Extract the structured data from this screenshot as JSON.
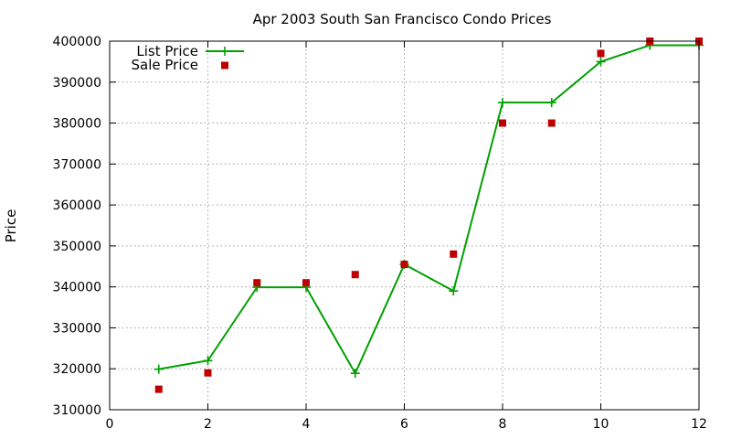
{
  "chart_data": {
    "type": "line",
    "title": "Apr 2003 South San Francisco Condo Prices",
    "xlabel": "",
    "ylabel": "Price",
    "xlim": [
      0,
      12
    ],
    "ylim": [
      310000,
      400000
    ],
    "xticks": [
      "0",
      "2",
      "4",
      "6",
      "8",
      "10",
      "12"
    ],
    "yticks": [
      "310000",
      "320000",
      "330000",
      "340000",
      "350000",
      "360000",
      "370000",
      "380000",
      "390000",
      "400000"
    ],
    "grid": true,
    "legend_position": "top-left",
    "series": [
      {
        "name": "List Price",
        "style": "line-with-plus-markers",
        "color": "#00a000",
        "x": [
          1,
          2,
          3,
          4,
          5,
          6,
          7,
          8,
          9,
          10,
          11,
          12
        ],
        "y": [
          319900,
          322000,
          339900,
          339900,
          318900,
          345500,
          339000,
          385000,
          385000,
          395000,
          399000,
          399000
        ]
      },
      {
        "name": "Sale Price",
        "style": "square-markers",
        "color": "#c00000",
        "x": [
          1,
          2,
          3,
          4,
          5,
          6,
          7,
          8,
          9,
          10,
          11,
          12
        ],
        "y": [
          315000,
          319000,
          341000,
          341000,
          343000,
          345500,
          348000,
          380000,
          380000,
          397000,
          400000,
          400000
        ]
      }
    ]
  }
}
